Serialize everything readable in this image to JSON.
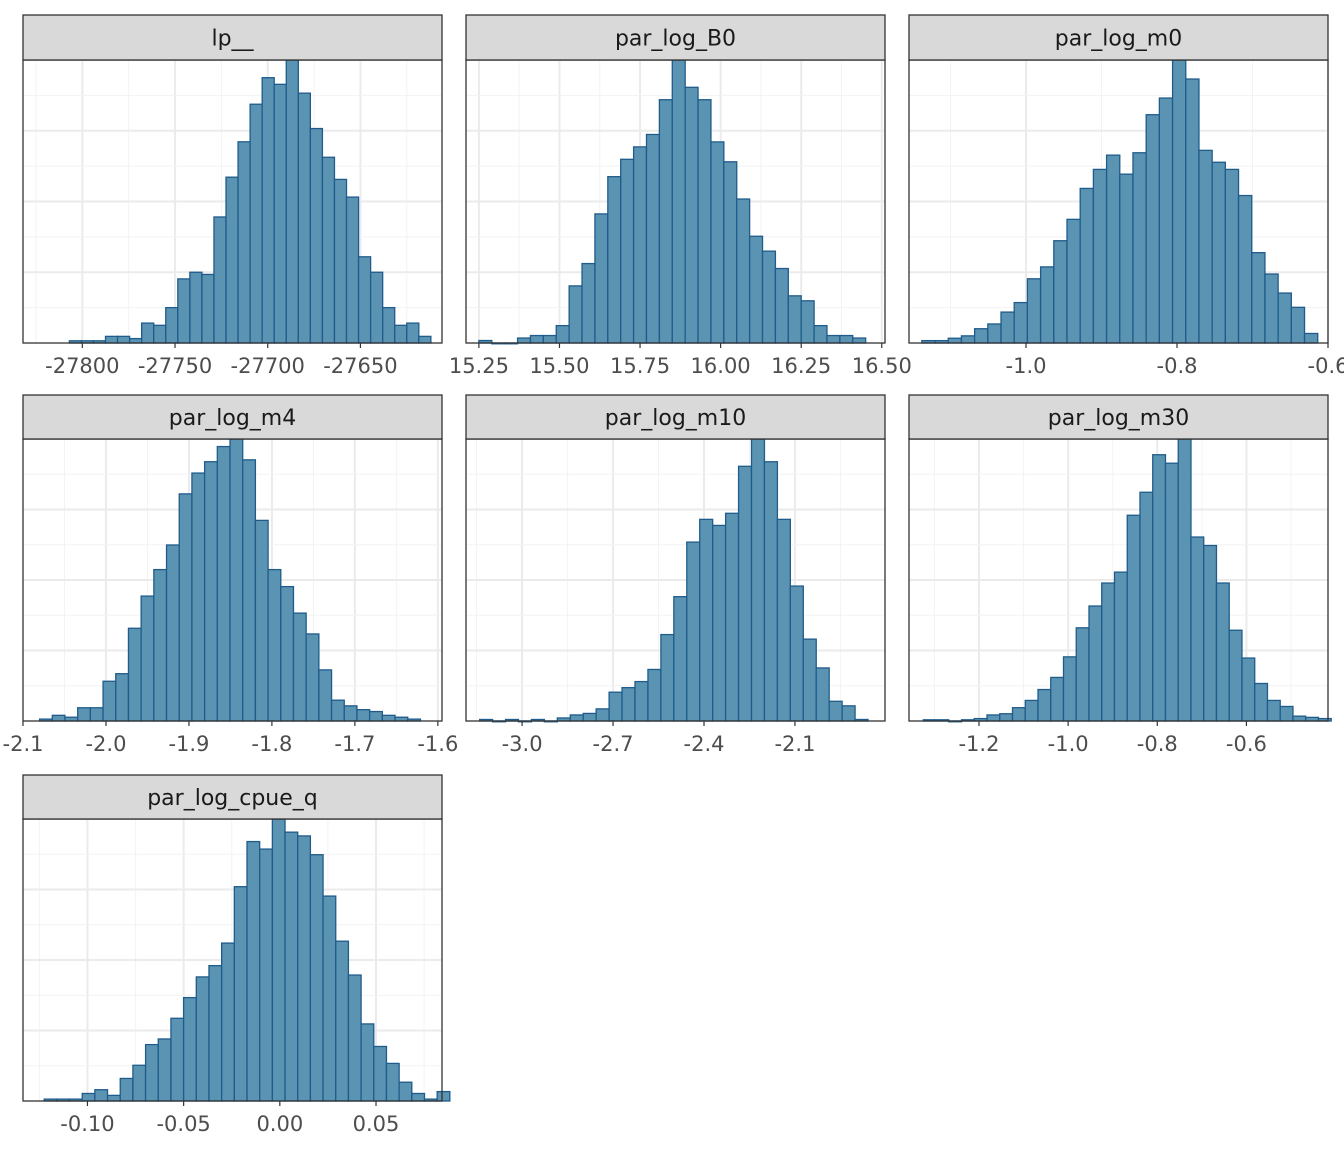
{
  "style": {
    "bar_fill": "#5b93b2",
    "bar_stroke": "#1f5c8b",
    "strip_fill": "#d9d9d9",
    "panel_background": "#ffffff",
    "grid_color": "#ebebeb"
  },
  "chart_data": [
    {
      "type": "bar",
      "title": "lp__",
      "grid": true,
      "x_ticks": [
        -27800,
        -27750,
        -27700,
        -27650
      ],
      "x_tick_labels": [
        "-27800",
        "-27750",
        "-27700",
        "-27650"
      ],
      "xlim": [
        -27832,
        -27606
      ],
      "bins": {
        "start": -27807,
        "width": 6.5
      },
      "values": [
        1,
        1,
        1,
        3,
        3,
        2,
        9,
        8,
        16,
        29,
        32,
        31,
        57,
        75,
        91,
        108,
        120,
        117,
        128,
        113,
        97,
        84,
        74,
        66,
        39,
        32,
        16,
        8,
        9,
        3
      ]
    },
    {
      "type": "bar",
      "title": "par_log_B0",
      "grid": true,
      "x_ticks": [
        15.25,
        15.5,
        15.75,
        16.0,
        16.25,
        16.5
      ],
      "x_tick_labels": [
        "15.25",
        "15.50",
        "15.75",
        "16.00",
        "16.25",
        "16.50"
      ],
      "xlim": [
        15.21,
        16.51
      ],
      "bins": {
        "start": 15.25,
        "width": 0.04
      },
      "values": [
        1,
        0,
        0,
        2,
        3,
        3,
        7,
        23,
        32,
        52,
        67,
        74,
        79,
        84,
        98,
        114,
        103,
        98,
        81,
        73,
        58,
        43,
        37,
        30,
        19,
        17,
        7,
        3,
        3,
        2
      ]
    },
    {
      "type": "bar",
      "title": "par_log_m0",
      "grid": true,
      "x_ticks": [
        -1.0,
        -0.8,
        -0.6
      ],
      "x_tick_labels": [
        "-1.0",
        "-0.8",
        "-0.6"
      ],
      "xlim": [
        -1.155,
        -0.6
      ],
      "bins": {
        "start": -1.138,
        "width": 0.01748
      },
      "values": [
        1,
        1,
        2,
        3,
        6,
        8,
        13,
        17,
        27,
        32,
        43,
        52,
        65,
        73,
        79,
        71,
        80,
        96,
        103,
        119,
        111,
        81,
        76,
        73,
        62,
        38,
        29,
        21,
        15,
        4
      ]
    },
    {
      "type": "bar",
      "title": "par_log_m4",
      "grid": true,
      "x_ticks": [
        -2.1,
        -2.0,
        -1.9,
        -1.8,
        -1.7,
        -1.6
      ],
      "x_tick_labels": [
        "-2.1",
        "-2.0",
        "-1.9",
        "-1.8",
        "-1.7",
        "-1.6"
      ],
      "xlim": [
        -2.1,
        -1.595
      ],
      "bins": {
        "start": -2.08,
        "width": 0.0153
      },
      "values": [
        1,
        3,
        2,
        7,
        7,
        21,
        25,
        49,
        66,
        80,
        93,
        120,
        131,
        137,
        145,
        149,
        138,
        106,
        80,
        71,
        57,
        46,
        27,
        11,
        8,
        6,
        5,
        3,
        2,
        1
      ]
    },
    {
      "type": "bar",
      "title": "par_log_m10",
      "grid": true,
      "x_ticks": [
        -3.0,
        -2.7,
        -2.4,
        -2.1
      ],
      "x_tick_labels": [
        "-3.0",
        "-2.7",
        "-2.4",
        "-2.1"
      ],
      "xlim": [
        -3.185,
        -1.803
      ],
      "bins": {
        "start": -3.14,
        "width": 0.0427
      },
      "values": [
        1,
        0,
        1,
        0,
        1,
        0,
        2,
        4,
        5,
        8,
        19,
        22,
        26,
        34,
        57,
        82,
        118,
        133,
        129,
        137,
        168,
        186,
        171,
        133,
        89,
        54,
        35,
        13,
        10,
        1
      ]
    },
    {
      "type": "bar",
      "title": "par_log_m30",
      "grid": true,
      "x_ticks": [
        -1.2,
        -1.0,
        -0.8,
        -0.6
      ],
      "x_tick_labels": [
        "-1.2",
        "-1.0",
        "-0.8",
        "-0.6"
      ],
      "xlim": [
        -1.357,
        -0.417
      ],
      "bins": {
        "start": -1.325,
        "width": 0.0286
      },
      "values": [
        1,
        1,
        0,
        1,
        2,
        5,
        6,
        11,
        17,
        26,
        36,
        53,
        77,
        95,
        114,
        123,
        170,
        189,
        220,
        213,
        233,
        152,
        145,
        114,
        75,
        52,
        31,
        17,
        12,
        4,
        3,
        2
      ]
    },
    {
      "type": "bar",
      "title": "par_log_cpue_q",
      "grid": true,
      "x_ticks": [
        -0.1,
        -0.05,
        0.0,
        0.05
      ],
      "x_tick_labels": [
        "-0.10",
        "-0.05",
        "0.00",
        "0.05"
      ],
      "xlim": [
        -0.1335,
        0.0843
      ],
      "bins": {
        "start": -0.1225,
        "width": 0.00659
      },
      "values": [
        1,
        1,
        1,
        4,
        6,
        3,
        12,
        19,
        30,
        33,
        44,
        55,
        66,
        72,
        84,
        114,
        138,
        134,
        150,
        143,
        141,
        131,
        109,
        85,
        67,
        41,
        29,
        20,
        10,
        4,
        1,
        5
      ]
    }
  ]
}
